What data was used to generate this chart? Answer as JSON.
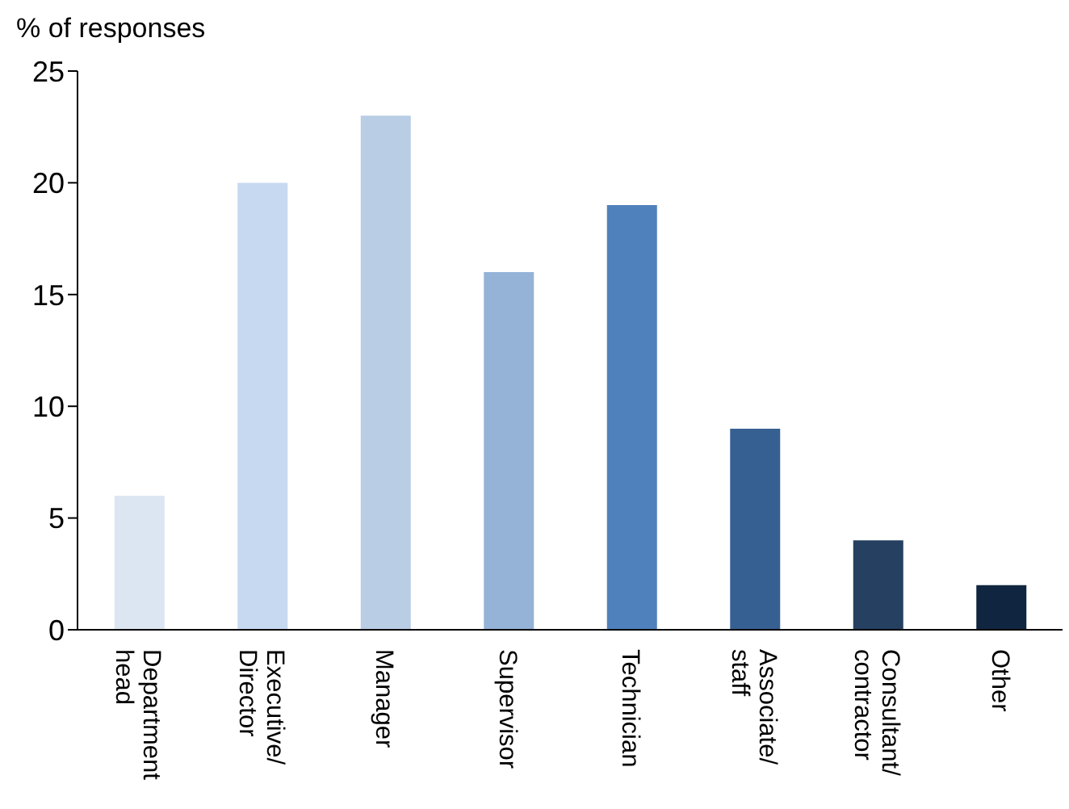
{
  "chart_data": {
    "type": "bar",
    "ylabel": "% of responses",
    "categories": [
      "Department head",
      "Executive/ Director",
      "Manager",
      "Supervisor",
      "Technician",
      "Associate/ staff",
      "Consultant/ contractor",
      "Other"
    ],
    "values": [
      6,
      20,
      23,
      16,
      19,
      9,
      4,
      2
    ],
    "colors": [
      "#dce6f2",
      "#c6d9f1",
      "#b9cde5",
      "#95b3d7",
      "#4f81bd",
      "#376092",
      "#254061",
      "#10253f"
    ],
    "ylim": [
      0,
      25
    ],
    "yticks": [
      0,
      5,
      10,
      15,
      20,
      25
    ],
    "grid": false
  }
}
